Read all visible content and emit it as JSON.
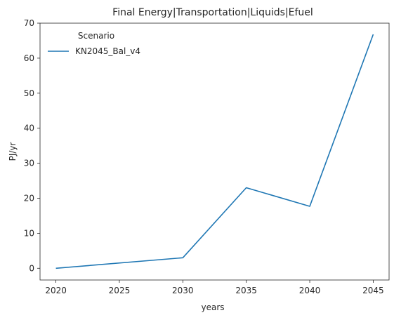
{
  "chart_data": {
    "type": "line",
    "title": "Final Energy|Transportation|Liquids|Efuel",
    "xlabel": "years",
    "ylabel": "PJ/yr",
    "xlim": [
      2018.75,
      2046.25
    ],
    "ylim": [
      -3.35,
      70
    ],
    "x_ticks": [
      2020,
      2025,
      2030,
      2035,
      2040,
      2045
    ],
    "y_ticks": [
      0,
      10,
      20,
      30,
      40,
      50,
      60,
      70
    ],
    "grid": false,
    "legend": {
      "title": "Scenario",
      "position": "top-left"
    },
    "series": [
      {
        "name": "KN2045_Bal_v4",
        "color": "#1f77b4",
        "x": [
          2020,
          2030,
          2035,
          2040,
          2045
        ],
        "y": [
          0.0,
          3.0,
          23.0,
          17.7,
          66.8
        ]
      }
    ]
  }
}
